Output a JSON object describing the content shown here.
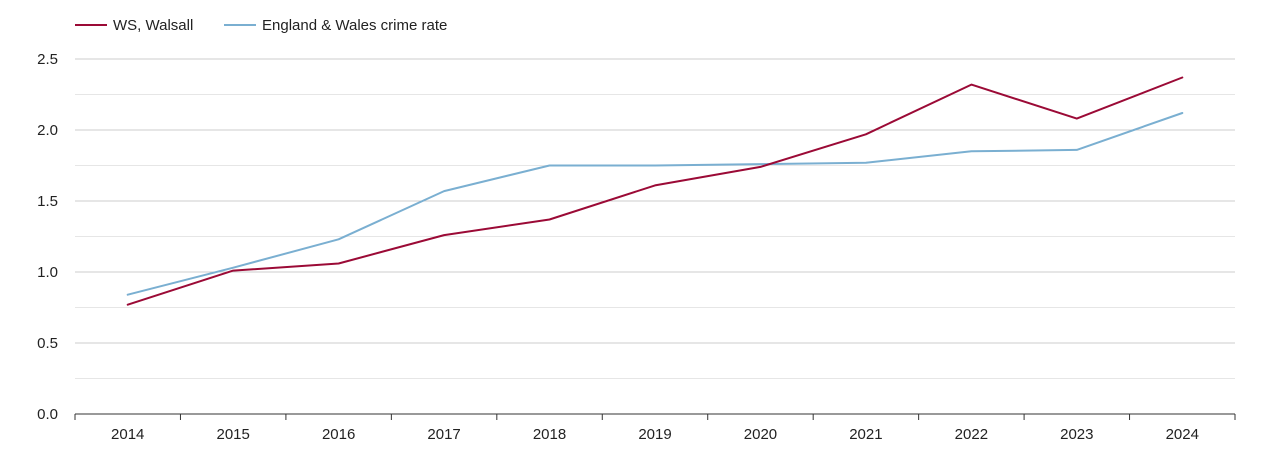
{
  "chart_data": {
    "type": "line",
    "title": "",
    "xlabel": "",
    "ylabel": "",
    "ylim": [
      0,
      2.5
    ],
    "yticks": [
      "0.0",
      "0.5",
      "1.0",
      "1.5",
      "2.0",
      "2.5"
    ],
    "grid": true,
    "legend_position": "top-left",
    "categories": [
      "2014",
      "2015",
      "2016",
      "2017",
      "2018",
      "2019",
      "2020",
      "2021",
      "2022",
      "2023",
      "2024"
    ],
    "series": [
      {
        "name": "WS, Walsall",
        "color": "#9b0a36",
        "values": [
          0.77,
          1.01,
          1.06,
          1.26,
          1.37,
          1.61,
          1.74,
          1.97,
          2.32,
          2.08,
          2.37
        ]
      },
      {
        "name": "England & Wales crime rate",
        "color": "#7aafd1",
        "values": [
          0.84,
          1.03,
          1.23,
          1.57,
          1.75,
          1.75,
          1.76,
          1.77,
          1.85,
          1.86,
          2.12
        ]
      }
    ]
  }
}
